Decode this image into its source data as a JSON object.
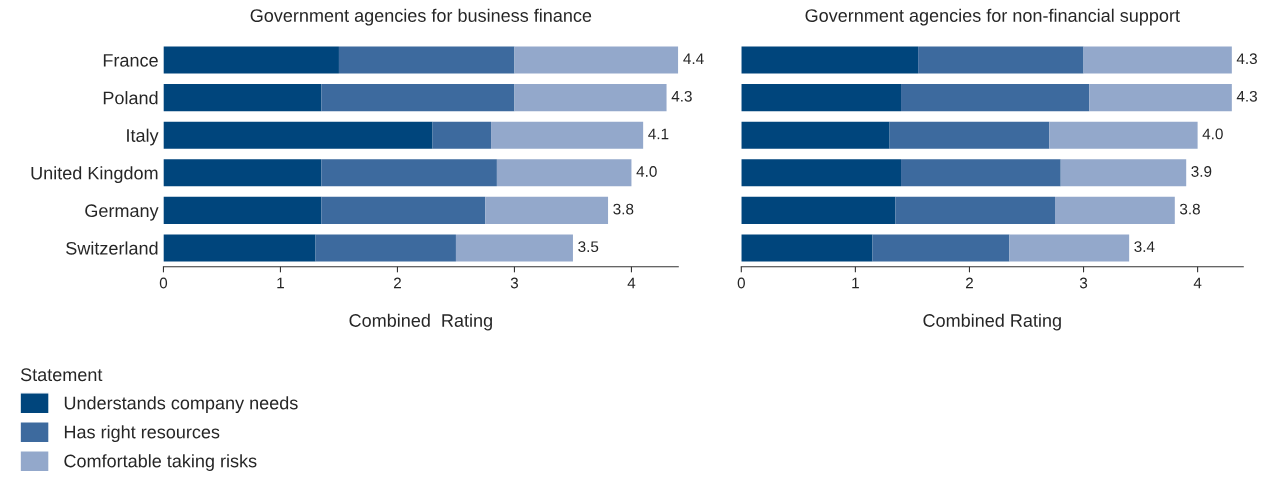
{
  "chart_data": [
    {
      "type": "bar",
      "orientation": "horizontal",
      "stacked": true,
      "title": "Government agencies for business finance",
      "xlabel": "Combined  Rating",
      "legend_title": "Statement",
      "legend": "bottom left",
      "categories": [
        "France",
        "Poland",
        "Italy",
        "United Kingdom",
        "Germany",
        "Switzerland"
      ],
      "series": [
        {
          "name": "Understands company needs",
          "color": "#00457c",
          "values": [
            1.5,
            1.35,
            2.3,
            1.35,
            1.35,
            1.3
          ]
        },
        {
          "name": "Has right resources",
          "color": "#3d6a9e",
          "values": [
            1.5,
            1.65,
            0.5,
            1.5,
            1.4,
            1.2
          ]
        },
        {
          "name": "Comfortable taking risks",
          "color": "#93a8cb",
          "values": [
            1.4,
            1.3,
            1.3,
            1.15,
            1.05,
            1.0
          ]
        }
      ],
      "totals": [
        "4.4",
        "4.3",
        "4.1",
        "4.0",
        "3.8",
        "3.5"
      ],
      "xlim": [
        0,
        4.4
      ],
      "xticks": [
        0,
        1,
        2,
        3,
        4
      ],
      "grid": false
    },
    {
      "type": "bar",
      "orientation": "horizontal",
      "stacked": true,
      "title": "Government agencies for non-financial support",
      "xlabel": "Combined Rating",
      "categories": [
        null,
        null,
        null,
        null,
        null,
        null
      ],
      "series": [
        {
          "color": "#00457c",
          "values": [
            1.55,
            1.4,
            1.3,
            1.4,
            1.35,
            1.15
          ]
        },
        {
          "color": "#3d6a9e",
          "values": [
            1.45,
            1.65,
            1.4,
            1.4,
            1.4,
            1.2
          ]
        },
        {
          "color": "#93a8cb",
          "values": [
            1.3,
            1.25,
            1.3,
            1.1,
            1.05,
            1.05
          ]
        }
      ],
      "totals": [
        "4.3",
        "4.3",
        "4.0",
        "3.9",
        "3.8",
        "3.4"
      ],
      "xlim": [
        0,
        4.4
      ],
      "xticks": [
        0,
        1,
        2,
        3,
        4
      ],
      "grid": false
    }
  ]
}
